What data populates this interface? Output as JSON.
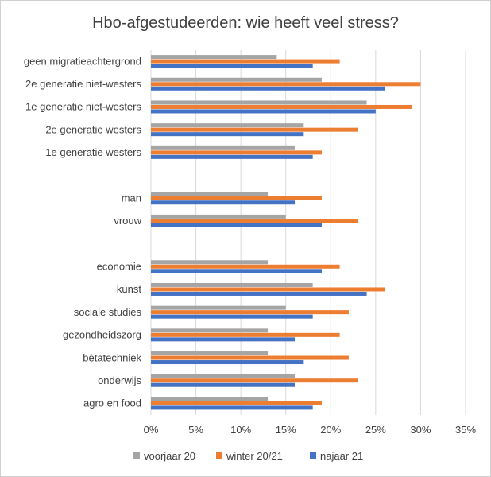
{
  "chart_data": {
    "type": "bar",
    "orientation": "horizontal",
    "title": "Hbo-afgestudeerden: wie heeft veel stress?",
    "categories": [
      "geen migratieachtergrond",
      "2e generatie niet-westers",
      "1e generatie niet-westers",
      "2e generatie westers",
      "1e generatie westers",
      "",
      "man",
      "vrouw",
      "",
      "economie",
      "kunst",
      "sociale studies",
      "gezondheidszorg",
      "bètatechniek",
      "onderwijs",
      "agro en food"
    ],
    "series": [
      {
        "name": "voorjaar 20",
        "color": "#a5a5a5",
        "values": [
          14,
          19,
          24,
          17,
          16,
          null,
          13,
          15,
          null,
          13,
          18,
          15,
          13,
          13,
          16,
          13
        ]
      },
      {
        "name": "winter 20/21",
        "color": "#ed7d31",
        "values": [
          21,
          30,
          29,
          23,
          19,
          null,
          19,
          23,
          null,
          21,
          26,
          22,
          21,
          22,
          23,
          19
        ]
      },
      {
        "name": "najaar 21",
        "color": "#4472c4",
        "values": [
          18,
          26,
          25,
          17,
          18,
          null,
          16,
          19,
          null,
          19,
          24,
          18,
          16,
          17,
          16,
          18
        ]
      }
    ],
    "xlim": [
      0,
      35
    ],
    "xticks": [
      "0%",
      "5%",
      "10%",
      "15%",
      "20%",
      "25%",
      "30%",
      "35%"
    ],
    "grid": true,
    "legend_position": "bottom"
  }
}
